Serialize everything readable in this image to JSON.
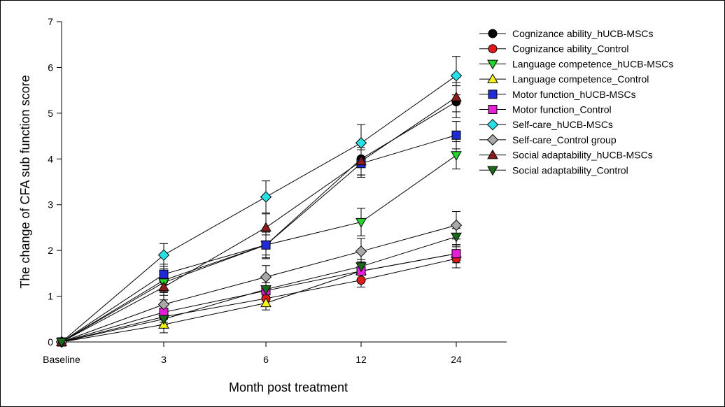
{
  "chart_data": {
    "type": "line",
    "title": "",
    "xlabel": "Month post treatment",
    "ylabel": "The change of CFA sub function score",
    "categories": [
      "Baseline",
      "3",
      "6",
      "12",
      "24"
    ],
    "ylim": [
      0,
      7
    ],
    "yticks": [
      0,
      1,
      2,
      3,
      4,
      5,
      6,
      7
    ],
    "grid": false,
    "legend_position": "top-right",
    "series": [
      {
        "name": "Cognizance ability_hUCB-MSCs",
        "marker": "circle",
        "color": "#000000",
        "values": [
          0,
          1.35,
          2.12,
          4.0,
          5.25
        ],
        "errors": [
          0,
          0.25,
          0.28,
          0.35,
          0.35
        ]
      },
      {
        "name": "Cognizance ability_Control",
        "marker": "circle",
        "color": "#e0191b",
        "values": [
          0,
          0.55,
          0.95,
          1.35,
          1.82
        ],
        "errors": [
          0,
          0.12,
          0.15,
          0.15,
          0.2
        ]
      },
      {
        "name": "Language competence_hUCB-MSCs",
        "marker": "triangle-down",
        "color": "#22d52a",
        "values": [
          0,
          1.3,
          2.12,
          2.62,
          4.08
        ],
        "errors": [
          0,
          0.22,
          0.3,
          0.3,
          0.3
        ]
      },
      {
        "name": "Language competence_Control",
        "marker": "triangle-up",
        "color": "#f4f11f",
        "values": [
          0,
          0.38,
          0.85,
          1.55,
          1.93
        ],
        "errors": [
          0,
          0.18,
          0.15,
          0.18,
          0.15
        ]
      },
      {
        "name": "Motor function_hUCB-MSCs",
        "marker": "square",
        "color": "#1f2bd6",
        "values": [
          0,
          1.48,
          2.12,
          3.9,
          4.52
        ],
        "errors": [
          0,
          0.22,
          0.22,
          0.3,
          0.3
        ]
      },
      {
        "name": "Motor function_Control",
        "marker": "square",
        "color": "#e81fd8",
        "values": [
          0,
          0.65,
          1.12,
          1.55,
          1.93
        ],
        "errors": [
          0,
          0.15,
          0.18,
          0.2,
          0.2
        ]
      },
      {
        "name": "Self-care_hUCB-MSCs",
        "marker": "diamond",
        "color": "#26e0e6",
        "values": [
          0,
          1.9,
          3.17,
          4.35,
          5.82
        ],
        "errors": [
          0,
          0.25,
          0.35,
          0.4,
          0.42
        ]
      },
      {
        "name": "Self-care_Control group",
        "marker": "diamond",
        "color": "#a9a9a9",
        "values": [
          0,
          0.82,
          1.42,
          1.98,
          2.55
        ],
        "errors": [
          0,
          0.2,
          0.25,
          0.28,
          0.3
        ]
      },
      {
        "name": "Social adaptability_hUCB-MSCs",
        "marker": "triangle-up",
        "color": "#8b1c1c",
        "values": [
          0,
          1.2,
          2.5,
          3.95,
          5.35
        ],
        "errors": [
          0,
          0.28,
          0.3,
          0.3,
          0.32
        ]
      },
      {
        "name": "Social adaptability_Control",
        "marker": "triangle-down",
        "color": "#1b6a1b",
        "values": [
          0,
          0.5,
          1.15,
          1.65,
          2.3
        ],
        "errors": [
          0,
          0.12,
          0.15,
          0.15,
          0.18
        ]
      }
    ]
  }
}
